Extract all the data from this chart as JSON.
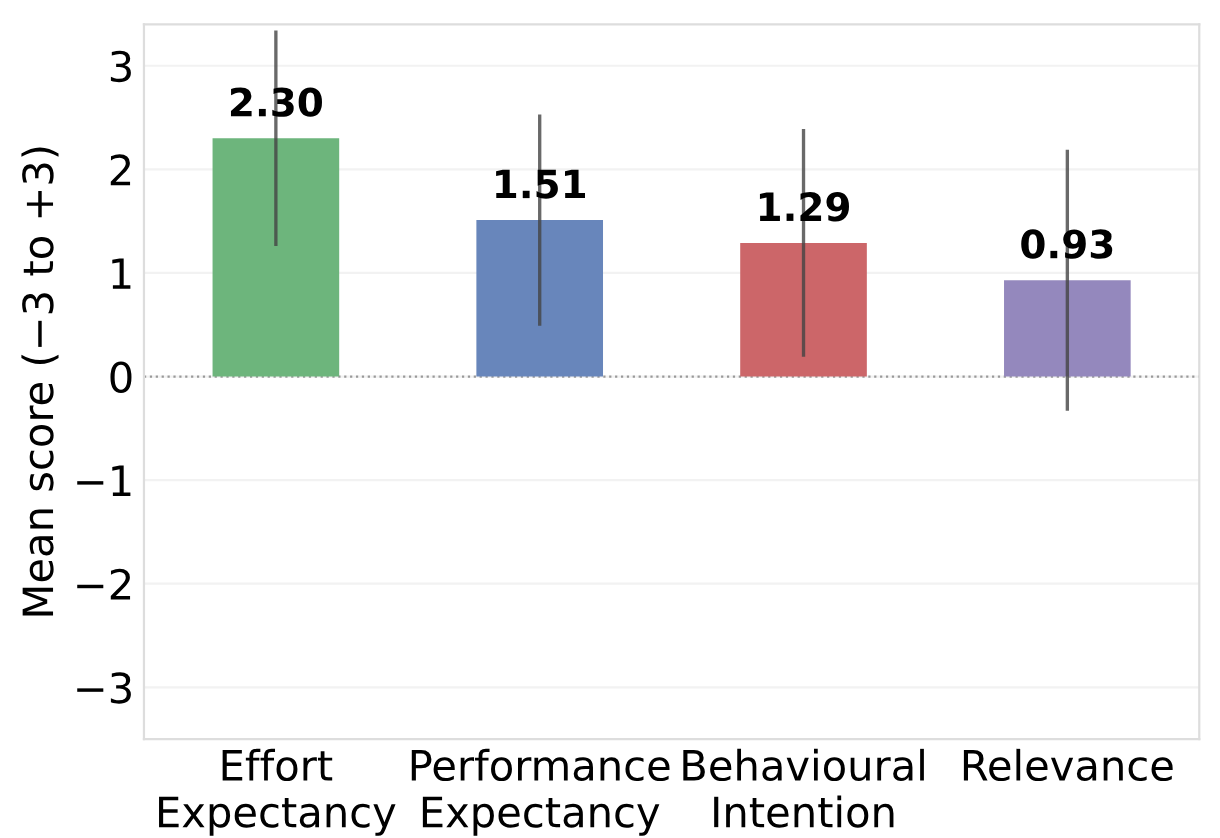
{
  "chart_data": {
    "type": "bar",
    "ylabel": "Mean score (−3 to +3)",
    "categories": [
      "Effort\nExpectancy",
      "Performance\nExpectancy",
      "Behavioural\nIntention",
      "Relevance"
    ],
    "values": [
      2.3,
      1.51,
      1.29,
      0.93
    ],
    "colors": [
      "#6db57c",
      "#6886bb",
      "#cc6669",
      "#9488bd"
    ],
    "errors": [
      1.04,
      1.02,
      1.1,
      1.26
    ],
    "value_labels": [
      "2.30",
      "1.51",
      "1.29",
      "0.93"
    ],
    "ylim": [
      -3.5,
      3.4
    ],
    "yticks": [
      {
        "value": -3,
        "label": "−3"
      },
      {
        "value": -2,
        "label": "−2"
      },
      {
        "value": -1,
        "label": "−1"
      },
      0,
      1,
      2,
      3
    ],
    "grid": "y",
    "ref_lines": [
      {
        "axis": "y",
        "value": 0,
        "label": null,
        "color": "#999999",
        "line_style": "dotted"
      }
    ]
  }
}
